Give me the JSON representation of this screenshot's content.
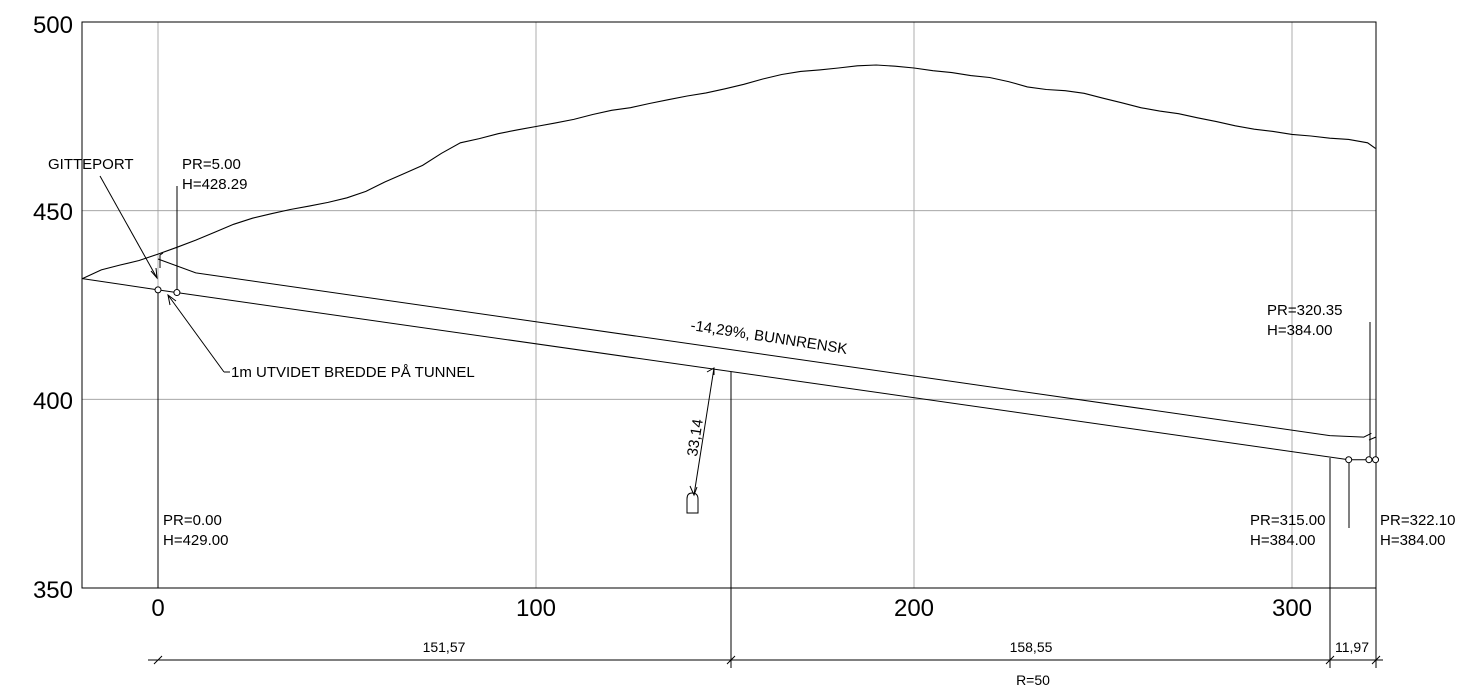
{
  "chart_data": {
    "type": "line",
    "title": "",
    "xlabel": "",
    "ylabel": "",
    "xlim": [
      -20,
      322.1
    ],
    "ylim": [
      350,
      500
    ],
    "x_ticks": [
      "0",
      "100",
      "200",
      "300"
    ],
    "y_ticks": [
      "500",
      "450",
      "400",
      "350"
    ],
    "grid": true,
    "terrain": {
      "x": [
        -20,
        -15,
        -10,
        -5,
        0,
        5,
        10,
        15,
        20,
        25,
        30,
        35,
        40,
        45,
        50,
        55,
        60,
        65,
        70,
        75,
        80,
        85,
        90,
        95,
        100,
        105,
        110,
        115,
        120,
        125,
        130,
        135,
        140,
        145,
        150,
        155,
        160,
        165,
        170,
        175,
        180,
        185,
        190,
        195,
        200,
        205,
        210,
        215,
        220,
        225,
        230,
        235,
        240,
        245,
        250,
        255,
        260,
        265,
        270,
        275,
        280,
        285,
        290,
        295,
        300,
        305,
        310,
        315,
        320,
        322.1
      ],
      "y": [
        432,
        434.3,
        435.6,
        436.8,
        438.5,
        440.3,
        442.2,
        444.3,
        446.4,
        448,
        449.2,
        450.3,
        451.2,
        452.2,
        453.4,
        455.1,
        457.6,
        459.8,
        462,
        465.2,
        468,
        469.1,
        470.4,
        471.4,
        472.3,
        473.2,
        474.2,
        475.5,
        476.6,
        477.3,
        478.4,
        479.4,
        480.4,
        481.2,
        482.3,
        483.5,
        484.9,
        486.1,
        486.9,
        487.3,
        487.8,
        488.4,
        488.6,
        488.3,
        487.8,
        487.1,
        486.6,
        485.8,
        485.3,
        484.2,
        482.8,
        482.1,
        481.8,
        481.1,
        479.8,
        478.6,
        477.3,
        476.4,
        475.7,
        474.6,
        473.6,
        472.5,
        471.6,
        471,
        470.2,
        469.8,
        469.2,
        468.9,
        468,
        466.5
      ]
    },
    "tunnel_floor": {
      "x": [
        -20,
        0,
        315,
        320.35,
        322.1
      ],
      "y": [
        432,
        429,
        384,
        384,
        384
      ]
    },
    "tunnel_roof": {
      "x": [
        0,
        10,
        310,
        319,
        321
      ],
      "y": [
        437.2,
        433.5,
        390.4,
        390,
        391
      ]
    },
    "annotations": {
      "gitteport": "GITTEPORT",
      "pr5_pr": "PR=5.00",
      "pr5_h": "H=428.29",
      "utvidet": "1m UTVIDET BREDDE PÅ TUNNEL",
      "slope": "-14,29%, BUNNRENSK",
      "dist": "33,14",
      "pr0_pr": "PR=0.00",
      "pr0_h": "H=429.00",
      "pr320_pr": "PR=320.35",
      "pr320_h": "H=384.00",
      "pr315_pr": "PR=315.00",
      "pr315_h": "H=384.00",
      "pr322_pr": "PR=322.10",
      "pr322_h": "H=384.00"
    },
    "dimensions": {
      "seg1": "151,57",
      "seg2": "158,55",
      "seg3": "11,97",
      "radius": "R=50"
    },
    "marker_points": [
      {
        "x": 0,
        "y": 429
      },
      {
        "x": 5,
        "y": 428.3
      },
      {
        "x": 315,
        "y": 384
      },
      {
        "x": 320.35,
        "y": 384
      },
      {
        "x": 322.1,
        "y": 384
      }
    ]
  }
}
